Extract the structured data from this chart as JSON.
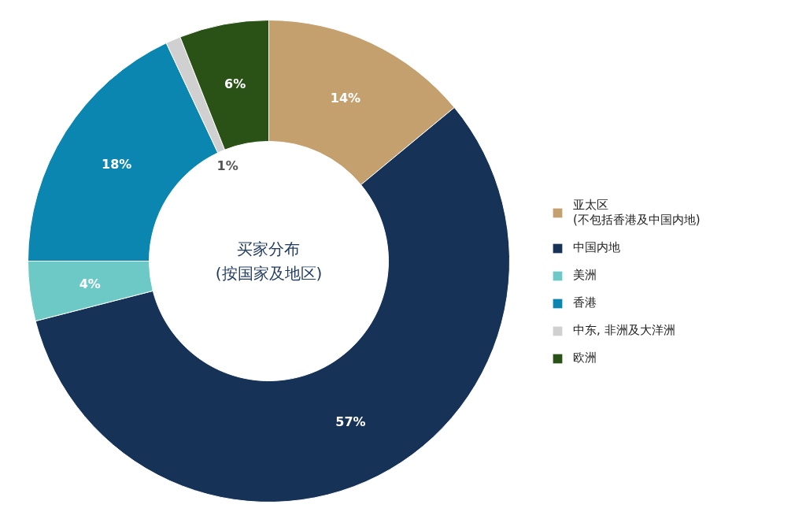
{
  "chart_data": {
    "type": "donut",
    "title": "买家分布\n(按国家及地区)",
    "categories": [
      "亚太区\n(不包括香港及中国内地)",
      "中国内地",
      "美洲",
      "香港",
      "中东, 非洲及大洋洲",
      "欧洲"
    ],
    "values": [
      14,
      57,
      4,
      18,
      1,
      6
    ],
    "colors": [
      "#c4a06e",
      "#163257",
      "#6cc9c6",
      "#0a86b0",
      "#d0d0d0",
      "#2a5216"
    ],
    "value_labels": [
      "14%",
      "57%",
      "4%",
      "18%",
      "1%",
      "6%"
    ],
    "legend": "right"
  }
}
